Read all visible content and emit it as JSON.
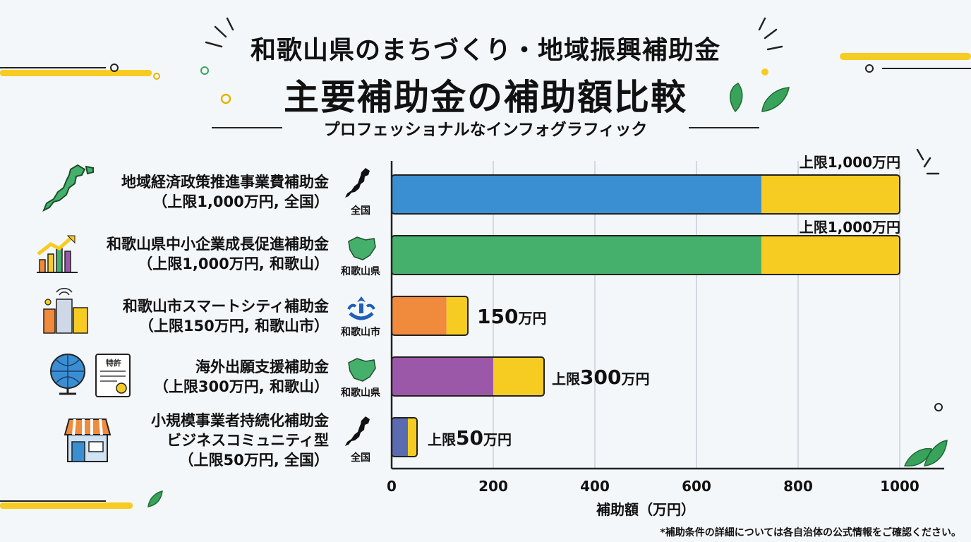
{
  "header": {
    "title_line1": "和歌山県のまちづくり・地域振興補助金",
    "title_line2": "主要補助金の補助額比較",
    "subtitle": "プロフェッショナルなインフォグラフィック"
  },
  "footnote": "*補助条件の詳細については各自治体の公式情報をご確認ください。",
  "colors": {
    "cap": "#f7cc22",
    "blue": "#3a8fd3",
    "green": "#45b06c",
    "orange": "#f08a3c",
    "purple": "#9b58a8",
    "slate": "#5b6bb0",
    "leaf": "#3aa35b"
  },
  "rows": [
    {
      "label_lines": [
        "地域経済政策推進事業費補助金",
        "（上限1,000万円, 全国）"
      ],
      "region": "全国",
      "annotation_prefix": "上限",
      "annotation_value": "1,000",
      "annotation_unit": "万円",
      "icon": "japan-map-icon",
      "region_icon": "japan-map-icon"
    },
    {
      "label_lines": [
        "和歌山県中小企業成長促進補助金",
        "（上限1,000万円, 和歌山）"
      ],
      "region": "和歌山県",
      "annotation_prefix": "上限",
      "annotation_value": "1,000",
      "annotation_unit": "万円",
      "icon": "growth-chart-icon",
      "region_icon": "wakayama-map-icon"
    },
    {
      "label_lines": [
        "和歌山市スマートシティ補助金",
        "（上限150万円, 和歌山市）"
      ],
      "region": "和歌山市",
      "annotation_prefix": "",
      "annotation_value": "150",
      "annotation_unit": "万円",
      "icon": "smart-city-icon",
      "region_icon": "city-emblem-icon"
    },
    {
      "label_lines": [
        "海外出願支援補助金",
        "（上限300万円, 和歌山）"
      ],
      "region": "和歌山県",
      "annotation_prefix": "上限",
      "annotation_value": "300",
      "annotation_unit": "万円",
      "icon": "globe-patent-icon",
      "region_icon": "wakayama-map-icon",
      "patent_text": "特許"
    },
    {
      "label_lines": [
        "小規模事業者持続化補助金",
        "ビジネスコミュニティ型",
        "（上限50万円, 全国）"
      ],
      "region": "全国",
      "annotation_prefix": "上限",
      "annotation_value": "50",
      "annotation_unit": "万円",
      "icon": "shop-icon",
      "region_icon": "japan-map-icon"
    }
  ],
  "chart_data": {
    "type": "bar",
    "orientation": "horizontal",
    "stacked": true,
    "categories": [
      "地域経済政策推進事業費補助金",
      "和歌山県中小企業成長促進補助金",
      "和歌山市スマートシティ補助金",
      "海外出願支援補助金",
      "小規模事業者持続化補助金 ビジネスコミュニティ型"
    ],
    "series": [
      {
        "values": [
          728,
          728,
          108,
          200,
          32
        ],
        "colors": [
          "#3a8fd3",
          "#45b06c",
          "#f08a3c",
          "#9b58a8",
          "#5b6bb0"
        ]
      },
      {
        "values": [
          272,
          272,
          42,
          100,
          18
        ],
        "color": "#f7cc22"
      }
    ],
    "totals": [
      1000,
      1000,
      150,
      300,
      50
    ],
    "xlabel": "補助額（万円）",
    "xlim": [
      0,
      1000
    ],
    "xticks": [
      0,
      200,
      400,
      600,
      800,
      1000
    ],
    "grid": "vertical"
  }
}
